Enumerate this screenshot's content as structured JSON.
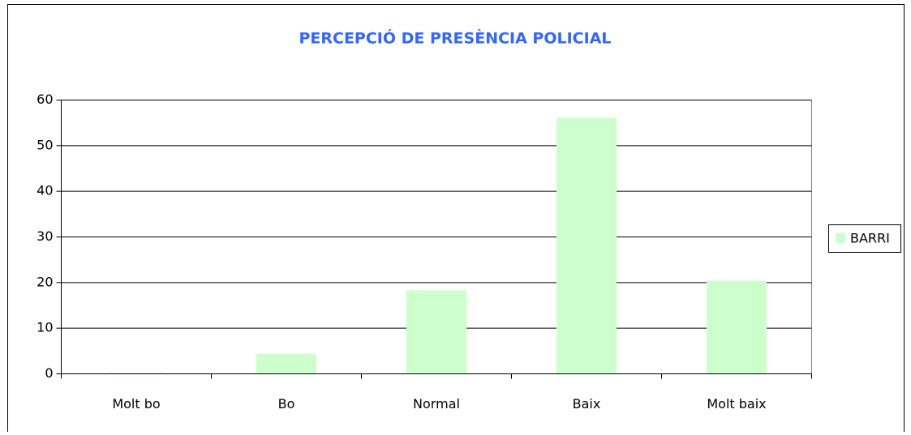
{
  "chart_data": {
    "type": "bar",
    "title": "PERCEPCIÓ DE PRESÈNCIA POLICIAL",
    "categories": [
      "Molt bo",
      "Bo",
      "Normal",
      "Baix",
      "Molt baix"
    ],
    "series": [
      {
        "name": "BARRI",
        "color": "#ccffcc",
        "values": [
          0.2,
          4.4,
          18.3,
          56.1,
          20.4
        ]
      }
    ],
    "ylim": [
      0,
      60
    ],
    "yticks": [
      0,
      10,
      20,
      30,
      40,
      50,
      60
    ],
    "grid": true,
    "legend": "right"
  }
}
